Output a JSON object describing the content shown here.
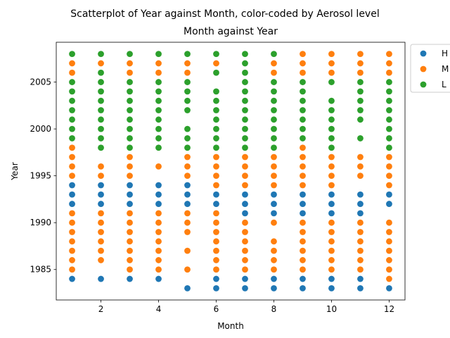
{
  "chart_data": {
    "type": "scatter",
    "suptitle": "Scatterplot of Year against Month, color-coded by Aerosol level",
    "title": "Month against Year",
    "xlabel": "Month",
    "ylabel": "Year",
    "xlim": [
      0.45,
      12.55
    ],
    "ylim": [
      1981.75,
      2009.25
    ],
    "xticks": [
      2,
      4,
      6,
      8,
      10,
      12
    ],
    "yticks": [
      1985,
      1990,
      1995,
      2000,
      2005
    ],
    "grid": false,
    "legend_position": "outside-right-top",
    "series": [
      {
        "name": "H",
        "color": "#1f77b4",
        "points": {
          "1": [
            1984,
            1992,
            1993,
            1994
          ],
          "2": [
            1984,
            1992,
            1993,
            1994
          ],
          "3": [
            1984,
            1992,
            1993,
            1994
          ],
          "4": [
            1984,
            1992,
            1993,
            1994
          ],
          "5": [
            1983,
            1992,
            1993,
            1994
          ],
          "6": [
            1983,
            1984,
            1992,
            1993
          ],
          "7": [
            1983,
            1984,
            1991,
            1992,
            1993
          ],
          "8": [
            1983,
            1984,
            1991,
            1992,
            1993
          ],
          "9": [
            1983,
            1984,
            1991,
            1992,
            1993
          ],
          "10": [
            1983,
            1984,
            1991,
            1992,
            1993
          ],
          "11": [
            1983,
            1984,
            1991,
            1992,
            1993
          ],
          "12": [
            1983,
            1992,
            1993
          ]
        }
      },
      {
        "name": "M",
        "color": "#ff7f0e",
        "points": {
          "1": [
            1985,
            1986,
            1987,
            1988,
            1989,
            1990,
            1991,
            1995,
            1996,
            1997,
            1998,
            2006,
            2007
          ],
          "2": [
            1986,
            1987,
            1988,
            1989,
            1990,
            1991,
            1995,
            1996,
            2007
          ],
          "3": [
            1985,
            1986,
            1987,
            1988,
            1989,
            1990,
            1991,
            1995,
            1996,
            1997,
            2006,
            2007
          ],
          "4": [
            1985,
            1986,
            1987,
            1988,
            1989,
            1990,
            1991,
            1996,
            2006,
            2007
          ],
          "5": [
            1985,
            1987,
            1989,
            1990,
            1991,
            1995,
            1996,
            1997,
            2006,
            2007
          ],
          "6": [
            1985,
            1986,
            1987,
            1988,
            1989,
            1990,
            1991,
            1994,
            1995,
            1996,
            1997,
            2007
          ],
          "7": [
            1985,
            1986,
            1987,
            1988,
            1989,
            1990,
            1994,
            1995,
            1996,
            1997
          ],
          "8": [
            1985,
            1986,
            1987,
            1988,
            1990,
            1994,
            1995,
            1996,
            1997,
            2006,
            2007
          ],
          "9": [
            1985,
            1986,
            1987,
            1988,
            1989,
            1990,
            1994,
            1995,
            1996,
            1997,
            1998,
            2006,
            2007,
            2008
          ],
          "10": [
            1985,
            1986,
            1987,
            1988,
            1989,
            1990,
            1994,
            1995,
            1996,
            1997,
            2006,
            2007,
            2008
          ],
          "11": [
            1985,
            1986,
            1987,
            1988,
            1989,
            1990,
            1995,
            1996,
            1997,
            2006,
            2007,
            2008
          ],
          "12": [
            1984,
            1985,
            1986,
            1987,
            1988,
            1989,
            1990,
            1994,
            1995,
            1996,
            1997,
            2006,
            2007,
            2008
          ]
        }
      },
      {
        "name": "L",
        "color": "#2ca02c",
        "points": {
          "1": [
            1999,
            2000,
            2001,
            2002,
            2003,
            2004,
            2005,
            2008
          ],
          "2": [
            1998,
            1999,
            2000,
            2001,
            2002,
            2003,
            2004,
            2005,
            2006,
            2008
          ],
          "3": [
            1998,
            1999,
            2000,
            2001,
            2002,
            2003,
            2004,
            2005,
            2008
          ],
          "4": [
            1998,
            1999,
            2000,
            2001,
            2002,
            2003,
            2004,
            2005,
            2008
          ],
          "5": [
            1998,
            1999,
            2000,
            2002,
            2003,
            2004,
            2005,
            2008
          ],
          "6": [
            1998,
            1999,
            2000,
            2001,
            2002,
            2003,
            2004,
            2006,
            2008
          ],
          "7": [
            1998,
            1999,
            2000,
            2001,
            2002,
            2003,
            2004,
            2005,
            2006,
            2007,
            2008
          ],
          "8": [
            1998,
            1999,
            2000,
            2001,
            2002,
            2003,
            2004,
            2005,
            2008
          ],
          "9": [
            1999,
            2000,
            2001,
            2002,
            2003,
            2004,
            2005
          ],
          "10": [
            1998,
            1999,
            2000,
            2001,
            2002,
            2003,
            2005
          ],
          "11": [
            1999,
            2001,
            2002,
            2003,
            2004,
            2005
          ],
          "12": [
            1998,
            1999,
            2000,
            2001,
            2002,
            2003,
            2004,
            2005
          ]
        }
      }
    ]
  }
}
